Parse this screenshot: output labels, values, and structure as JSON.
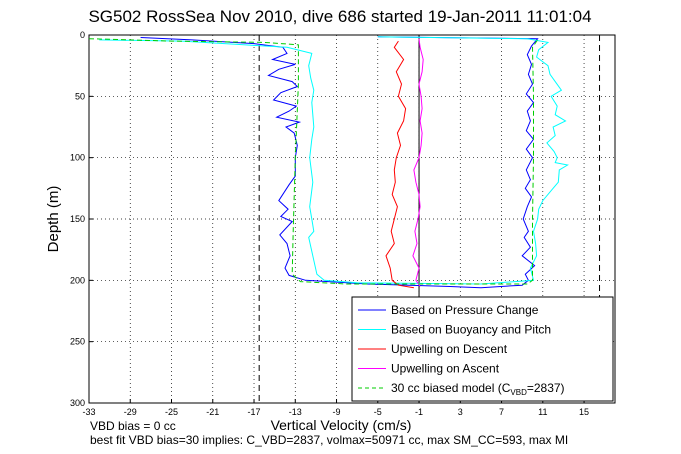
{
  "chart_data": {
    "type": "line",
    "title": "SG502 RossSea Nov 2010, dive 686 started 19-Jan-2011 11:01:04",
    "xlabel": "Vertical Velocity (cm/s)",
    "ylabel": "Depth (m)",
    "xlim": [
      -33,
      18
    ],
    "ylim": [
      0,
      300
    ],
    "y_reversed": true,
    "xticks": [
      -33,
      -29,
      -25,
      -21,
      -17,
      -13,
      -9,
      -5,
      -1,
      3,
      7,
      11,
      15
    ],
    "yticks": [
      0,
      50,
      100,
      150,
      200,
      250,
      300
    ],
    "grid": true,
    "vertical_reference_lines": [
      {
        "x": -16.5,
        "style": "dashed"
      },
      {
        "x": -1.0,
        "style": "solid"
      },
      {
        "x": 16.5,
        "style": "dashed"
      }
    ],
    "legend": {
      "position": "lower-right",
      "entries": [
        {
          "label": "Based on Pressure Change",
          "color": "#0000ff",
          "style": "solid"
        },
        {
          "label": "Based on Buoyancy and Pitch",
          "color": "#00ffff",
          "style": "solid"
        },
        {
          "label": "Upwelling on Descent",
          "color": "#ff0000",
          "style": "solid"
        },
        {
          "label": "Upwelling on Ascent",
          "color": "#ff00ff",
          "style": "solid"
        },
        {
          "label": "30 cc biased model (C",
          "sub": "VBD",
          "suffix": "=2837)",
          "color": "#00cc00",
          "style": "dashed"
        }
      ]
    },
    "series": [
      {
        "name": "Based on Pressure Change",
        "color": "#0000ff",
        "points": [
          [
            -28,
            2
          ],
          [
            -23,
            4
          ],
          [
            -17,
            7
          ],
          [
            -14.2,
            10
          ],
          [
            -13.8,
            15
          ],
          [
            -15.2,
            20
          ],
          [
            -13,
            24
          ],
          [
            -14.6,
            28
          ],
          [
            -15.6,
            33
          ],
          [
            -13.3,
            38
          ],
          [
            -12.8,
            42
          ],
          [
            -14.4,
            47
          ],
          [
            -15.1,
            53
          ],
          [
            -12.9,
            58
          ],
          [
            -13.6,
            62
          ],
          [
            -14.8,
            67
          ],
          [
            -12.6,
            71
          ],
          [
            -13.9,
            75
          ],
          [
            -13.1,
            80
          ],
          [
            -12.8,
            90
          ],
          [
            -13,
            100
          ],
          [
            -13,
            115
          ],
          [
            -13.6,
            122
          ],
          [
            -14.6,
            135
          ],
          [
            -13.7,
            142
          ],
          [
            -14.4,
            148
          ],
          [
            -13.3,
            152
          ],
          [
            -14.5,
            163
          ],
          [
            -13.8,
            170
          ],
          [
            -13.5,
            180
          ],
          [
            -14,
            190
          ],
          [
            -13.6,
            196
          ],
          [
            -12,
            200
          ],
          [
            -6,
            203
          ],
          [
            2,
            205
          ],
          [
            5,
            206
          ],
          [
            9,
            204
          ],
          [
            9.6,
            200
          ],
          [
            9.3,
            195
          ],
          [
            10.2,
            188
          ],
          [
            9,
            180
          ],
          [
            9.8,
            173
          ],
          [
            9.2,
            165
          ],
          [
            9.6,
            160
          ],
          [
            9.1,
            150
          ],
          [
            9.5,
            140
          ],
          [
            9.9,
            132
          ],
          [
            9.3,
            125
          ],
          [
            9.8,
            118
          ],
          [
            9.4,
            110
          ],
          [
            10,
            100
          ],
          [
            9.4,
            93
          ],
          [
            10.1,
            85
          ],
          [
            9.4,
            78
          ],
          [
            9.8,
            70
          ],
          [
            9.5,
            62
          ],
          [
            10.1,
            55
          ],
          [
            9.4,
            48
          ],
          [
            10,
            40
          ],
          [
            9.6,
            32
          ],
          [
            9.9,
            24
          ],
          [
            9.5,
            16
          ],
          [
            9.9,
            9
          ],
          [
            10.5,
            3
          ],
          [
            -5,
            1.5
          ]
        ]
      },
      {
        "name": "Based on Buoyancy and Pitch",
        "color": "#00ffff",
        "points": [
          [
            -32,
            4
          ],
          [
            -24,
            5
          ],
          [
            -18,
            8
          ],
          [
            -13.8,
            10
          ],
          [
            -11.4,
            15
          ],
          [
            -11.7,
            25
          ],
          [
            -11.5,
            35
          ],
          [
            -11.2,
            45
          ],
          [
            -11.4,
            55
          ],
          [
            -11.3,
            65
          ],
          [
            -11.2,
            75
          ],
          [
            -11.4,
            85
          ],
          [
            -11.6,
            100
          ],
          [
            -11.3,
            120
          ],
          [
            -11.6,
            140
          ],
          [
            -11.4,
            150
          ],
          [
            -11.2,
            160
          ],
          [
            -11.7,
            165
          ],
          [
            -11.3,
            180
          ],
          [
            -10.9,
            195
          ],
          [
            -10.2,
            200
          ],
          [
            -7,
            202
          ],
          [
            5,
            203
          ],
          [
            10.1,
            200
          ],
          [
            9.8,
            190
          ],
          [
            10.4,
            180
          ],
          [
            10.3,
            170
          ],
          [
            10.1,
            160
          ],
          [
            10.5,
            150
          ],
          [
            10.6,
            142
          ],
          [
            11,
            135
          ],
          [
            12,
            125
          ],
          [
            12.5,
            120
          ],
          [
            12.6,
            110
          ],
          [
            13.4,
            106
          ],
          [
            12.2,
            104
          ],
          [
            12.4,
            100
          ],
          [
            12.1,
            95
          ],
          [
            11.4,
            88
          ],
          [
            12.2,
            82
          ],
          [
            12,
            75
          ],
          [
            13.2,
            70
          ],
          [
            12.2,
            65
          ],
          [
            12.4,
            58
          ],
          [
            11.8,
            50
          ],
          [
            12.8,
            45
          ],
          [
            12.2,
            38
          ],
          [
            11.7,
            32
          ],
          [
            11.5,
            25
          ],
          [
            10.4,
            18
          ],
          [
            10.6,
            12
          ],
          [
            11.5,
            6
          ],
          [
            9.5,
            3
          ],
          [
            -5,
            1.5
          ]
        ]
      },
      {
        "name": "Upwelling on Descent",
        "color": "#ff0000",
        "points": [
          [
            -3,
            5
          ],
          [
            -3.4,
            10
          ],
          [
            -2.5,
            20
          ],
          [
            -3.2,
            30
          ],
          [
            -2.7,
            40
          ],
          [
            -3,
            50
          ],
          [
            -2.3,
            60
          ],
          [
            -2.5,
            70
          ],
          [
            -3.1,
            80
          ],
          [
            -2.8,
            90
          ],
          [
            -3.2,
            100
          ],
          [
            -3.4,
            110
          ],
          [
            -3.3,
            120
          ],
          [
            -3.6,
            130
          ],
          [
            -3.1,
            140
          ],
          [
            -3.4,
            150
          ],
          [
            -3.7,
            160
          ],
          [
            -3.4,
            170
          ],
          [
            -4.2,
            180
          ],
          [
            -3.8,
            190
          ],
          [
            -3.6,
            200
          ],
          [
            -3,
            204
          ],
          [
            -1.5,
            206
          ]
        ]
      },
      {
        "name": "Upwelling on Ascent",
        "color": "#ff00ff",
        "points": [
          [
            -0.9,
            205
          ],
          [
            -1.3,
            200
          ],
          [
            -1,
            190
          ],
          [
            -1.6,
            180
          ],
          [
            -1.2,
            170
          ],
          [
            -1.4,
            160
          ],
          [
            -1.1,
            150
          ],
          [
            -0.9,
            140
          ],
          [
            -1,
            130
          ],
          [
            -1.3,
            120
          ],
          [
            -1.5,
            110
          ],
          [
            -1,
            100
          ],
          [
            -0.8,
            90
          ],
          [
            -0.7,
            80
          ],
          [
            -0.9,
            70
          ],
          [
            -0.7,
            60
          ],
          [
            -0.8,
            50
          ],
          [
            -1,
            40
          ],
          [
            -0.7,
            30
          ],
          [
            -0.6,
            20
          ],
          [
            -0.9,
            10
          ],
          [
            -1,
            3
          ]
        ]
      },
      {
        "name": "30 cc biased model (CVBD=2837)",
        "color": "#00cc00",
        "dashed": true,
        "points": [
          [
            -33,
            3
          ],
          [
            -25,
            5
          ],
          [
            -16,
            6
          ],
          [
            -12.7,
            8
          ],
          [
            -12.7,
            40
          ],
          [
            -13,
            100
          ],
          [
            -13.2,
            160
          ],
          [
            -13.3,
            195
          ],
          [
            -12.5,
            201
          ],
          [
            -8,
            203
          ],
          [
            9.5,
            203
          ],
          [
            10,
            200
          ],
          [
            10,
            150
          ],
          [
            10.1,
            100
          ],
          [
            10.1,
            50
          ],
          [
            10,
            10
          ],
          [
            10.5,
            4
          ]
        ]
      }
    ]
  },
  "footer": {
    "line1": "VBD bias = 0 cc",
    "line2": "best fit VBD bias=30 implies: C_VBD=2837, volmax=50971 cc, max SM_CC=593, max MI"
  },
  "colors": {
    "axes": "#000000",
    "grid": "#000000",
    "background": "#ffffff"
  }
}
